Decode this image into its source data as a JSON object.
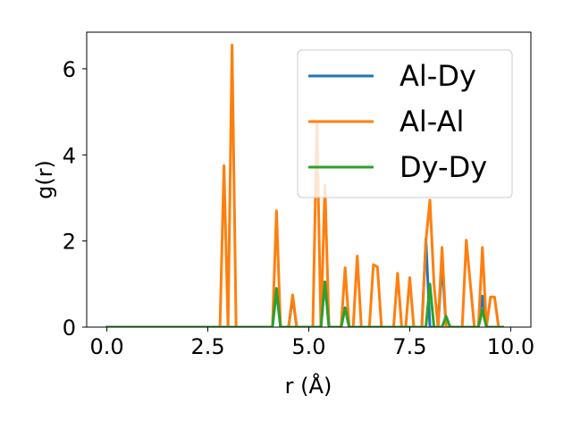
{
  "chart_data": {
    "type": "line",
    "xlabel": "r (Å)",
    "ylabel": "g(r)",
    "xlim": [
      -0.5,
      10.5
    ],
    "ylim": [
      0,
      6.85
    ],
    "xticks": [
      0,
      2.5,
      5,
      7.5,
      10
    ],
    "xtick_labels": [
      "0.0",
      "2.5",
      "5.0",
      "7.5",
      "10.0"
    ],
    "yticks": [
      0,
      2,
      4,
      6
    ],
    "ytick_labels": [
      "0",
      "2",
      "4",
      "6"
    ],
    "grid": false,
    "legend_position": "upper right",
    "series": [
      {
        "name": "Al-Dy",
        "color": "#1f77b4",
        "x": [
          0.0,
          4.1,
          4.2,
          4.3,
          4.5,
          4.6,
          4.7,
          5.3,
          5.4,
          5.5,
          5.8,
          5.9,
          6.0,
          7.8,
          7.9,
          8.0,
          8.2,
          8.3,
          8.4,
          9.2,
          9.3,
          9.4,
          9.8
        ],
        "y": [
          0.0,
          0.0,
          0.85,
          0.0,
          0.0,
          0.7,
          0.0,
          0.0,
          1.05,
          0.0,
          0.0,
          0.45,
          0.0,
          0.0,
          2.05,
          0.0,
          0.0,
          1.5,
          0.0,
          0.0,
          0.72,
          0.0,
          0.0
        ]
      },
      {
        "name": "Al-Al",
        "color": "#ff7f0e",
        "x": [
          0.0,
          2.8,
          2.9,
          3.0,
          3.1,
          3.2,
          4.1,
          4.2,
          4.3,
          4.5,
          4.6,
          4.7,
          5.1,
          5.2,
          5.3,
          5.4,
          5.5,
          5.8,
          5.9,
          6.0,
          6.1,
          6.2,
          6.3,
          6.5,
          6.6,
          6.7,
          6.8,
          7.1,
          7.2,
          7.3,
          7.4,
          7.5,
          7.6,
          7.8,
          7.9,
          8.0,
          8.1,
          8.2,
          8.3,
          8.4,
          8.7,
          8.8,
          8.9,
          9.1,
          9.2,
          9.3,
          9.4,
          9.5,
          9.6,
          9.7,
          9.8
        ],
        "y": [
          0.0,
          0.0,
          3.75,
          0.0,
          6.55,
          0.0,
          0.0,
          2.7,
          0.0,
          0.0,
          0.75,
          0.0,
          0.0,
          4.75,
          0.0,
          3.3,
          0.0,
          0.0,
          1.38,
          0.0,
          0.0,
          1.65,
          0.0,
          0.0,
          1.45,
          1.4,
          0.0,
          0.0,
          1.25,
          0.0,
          0.0,
          1.15,
          0.0,
          0.0,
          2.0,
          2.95,
          1.0,
          0.0,
          1.85,
          0.0,
          0.0,
          0.0,
          2.02,
          0.0,
          0.0,
          1.85,
          0.0,
          0.7,
          0.7,
          0.0,
          0.0
        ]
      },
      {
        "name": "Dy-Dy",
        "color": "#2ca02c",
        "x": [
          0.0,
          4.1,
          4.2,
          4.3,
          5.3,
          5.4,
          5.5,
          5.8,
          5.9,
          6.0,
          7.9,
          8.0,
          8.1,
          8.3,
          8.4,
          8.5,
          9.2,
          9.3,
          9.4,
          9.8
        ],
        "y": [
          0.0,
          0.0,
          0.9,
          0.0,
          0.0,
          1.05,
          0.0,
          0.0,
          0.45,
          0.0,
          0.0,
          1.0,
          0.0,
          0.0,
          0.25,
          0.0,
          0.0,
          0.4,
          0.0,
          0.0
        ]
      }
    ]
  }
}
